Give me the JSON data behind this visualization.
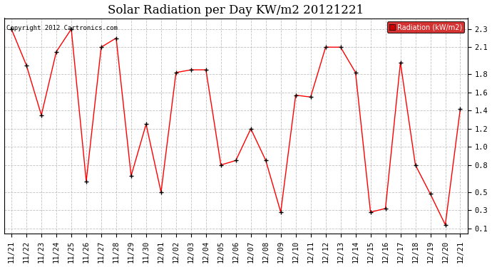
{
  "title": "Solar Radiation per Day KW/m2 20121221",
  "copyright_text": "Copyright 2012 Cartronics.com",
  "legend_label": "Radiation (kW/m2)",
  "x_labels": [
    "11/21",
    "11/22",
    "11/23",
    "11/24",
    "11/25",
    "11/26",
    "11/27",
    "11/28",
    "11/29",
    "11/30",
    "12/01",
    "12/02",
    "12/03",
    "12/04",
    "12/05",
    "12/06",
    "12/07",
    "12/08",
    "12/09",
    "12/10",
    "12/11",
    "12/12",
    "12/13",
    "12/14",
    "12/15",
    "12/16",
    "12/17",
    "12/18",
    "12/19",
    "12/20",
    "12/21"
  ],
  "y_values": [
    2.3,
    1.9,
    1.35,
    2.05,
    2.3,
    0.62,
    2.1,
    2.2,
    0.68,
    1.25,
    0.5,
    1.82,
    1.85,
    1.85,
    0.8,
    0.85,
    1.2,
    0.85,
    0.28,
    1.57,
    1.55,
    2.1,
    2.1,
    1.82,
    0.28,
    0.32,
    1.93,
    0.8,
    0.48,
    0.14,
    1.42
  ],
  "y_ticks": [
    0.1,
    0.3,
    0.5,
    0.8,
    1.0,
    1.2,
    1.4,
    1.6,
    1.8,
    2.1,
    2.3
  ],
  "ylim": [
    0.04,
    2.42
  ],
  "line_color": "red",
  "marker_color": "black",
  "bg_color": "#ffffff",
  "grid_color": "#bbbbbb",
  "legend_bg": "#cc0000",
  "legend_text_color": "#ffffff",
  "title_fontsize": 12,
  "tick_fontsize": 7.5
}
